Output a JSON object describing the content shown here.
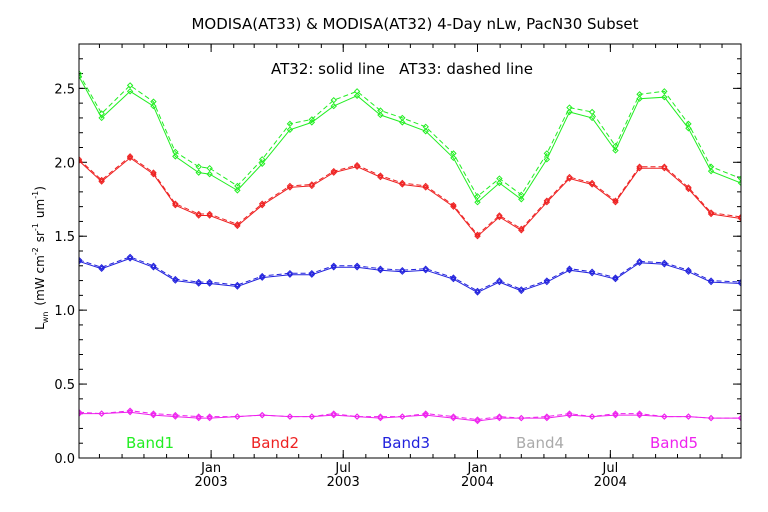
{
  "chart_data": {
    "type": "line",
    "title": "MODISA(AT33) & MODISA(AT32) 4-Day nLw, PacN30 Subset",
    "annotation": "AT32: solid line   AT33: dashed line",
    "ylabel": "L_wn (mW cm^-2 sr^-1 um^-1)",
    "ylabel_parts": {
      "L": "L",
      "wn": "wn",
      "mid": "(mW cm",
      "exp1": "-2",
      "sr": "sr",
      "exp2": "-1",
      "um": "um",
      "exp3": "-1",
      "close": ")"
    },
    "xlim": [
      "2002-07-04",
      "2004-12-27"
    ],
    "ylim": [
      0,
      2.8
    ],
    "yticks": [
      {
        "value": 0.0,
        "label": "0.0"
      },
      {
        "value": 0.5,
        "label": "0.5"
      },
      {
        "value": 1.0,
        "label": "1.0"
      },
      {
        "value": 1.5,
        "label": "1.5"
      },
      {
        "value": 2.0,
        "label": "2.0"
      },
      {
        "value": 2.5,
        "label": "2.5"
      }
    ],
    "xticks": [
      {
        "date": "2003-01-01",
        "label1": "Jan",
        "label2": "2003"
      },
      {
        "date": "2003-07-01",
        "label1": "Jul",
        "label2": "2003"
      },
      {
        "date": "2004-01-01",
        "label1": "Jan",
        "label2": "2004"
      },
      {
        "date": "2004-07-01",
        "label1": "Jul",
        "label2": "2004"
      }
    ],
    "x": [
      "2002-07-04",
      "2002-08-04",
      "2002-09-12",
      "2002-10-14",
      "2002-11-13",
      "2002-12-15",
      "2002-12-30",
      "2003-02-06",
      "2003-03-12",
      "2003-04-19",
      "2003-05-19",
      "2003-06-18",
      "2003-07-20",
      "2003-08-21",
      "2003-09-20",
      "2003-10-22",
      "2003-11-29",
      "2004-01-01",
      "2004-01-31",
      "2004-03-01",
      "2004-04-05",
      "2004-05-06",
      "2004-06-06",
      "2004-07-08",
      "2004-08-10",
      "2004-09-13",
      "2004-10-16",
      "2004-11-16",
      "2004-12-27"
    ],
    "series": [
      {
        "name": "Band1",
        "color": "#22ee22",
        "line": "solid",
        "values": [
          2.58,
          2.3,
          2.48,
          2.38,
          2.04,
          1.93,
          1.92,
          1.81,
          1.99,
          2.22,
          2.27,
          2.38,
          2.45,
          2.32,
          2.27,
          2.21,
          2.03,
          1.73,
          1.86,
          1.75,
          2.02,
          2.34,
          2.3,
          2.08,
          2.43,
          2.44,
          2.23,
          1.94,
          1.86
        ]
      },
      {
        "name": "Band1 AT33",
        "color": "#22ee22",
        "line": "dashed",
        "values": [
          2.6,
          2.33,
          2.52,
          2.41,
          2.07,
          1.97,
          1.96,
          1.84,
          2.02,
          2.26,
          2.29,
          2.42,
          2.48,
          2.35,
          2.3,
          2.24,
          2.06,
          1.77,
          1.89,
          1.78,
          2.06,
          2.37,
          2.34,
          2.11,
          2.46,
          2.48,
          2.26,
          1.97,
          1.89
        ]
      },
      {
        "name": "Band2",
        "color": "#ee2222",
        "line": "solid",
        "values": [
          2.01,
          1.87,
          2.03,
          1.92,
          1.71,
          1.64,
          1.64,
          1.57,
          1.71,
          1.83,
          1.84,
          1.93,
          1.97,
          1.9,
          1.85,
          1.83,
          1.7,
          1.5,
          1.63,
          1.54,
          1.73,
          1.89,
          1.85,
          1.73,
          1.96,
          1.96,
          1.82,
          1.65,
          1.62
        ]
      },
      {
        "name": "Band2 AT33",
        "color": "#ee2222",
        "line": "dashed",
        "values": [
          2.02,
          1.88,
          2.04,
          1.93,
          1.72,
          1.65,
          1.65,
          1.58,
          1.72,
          1.84,
          1.85,
          1.94,
          1.98,
          1.91,
          1.86,
          1.84,
          1.71,
          1.51,
          1.64,
          1.55,
          1.74,
          1.9,
          1.86,
          1.74,
          1.97,
          1.97,
          1.83,
          1.66,
          1.63
        ]
      },
      {
        "name": "Band3",
        "color": "#2222dd",
        "line": "solid",
        "values": [
          1.33,
          1.28,
          1.35,
          1.29,
          1.2,
          1.18,
          1.18,
          1.16,
          1.22,
          1.24,
          1.24,
          1.29,
          1.29,
          1.27,
          1.26,
          1.27,
          1.21,
          1.12,
          1.19,
          1.13,
          1.19,
          1.27,
          1.25,
          1.21,
          1.32,
          1.31,
          1.26,
          1.19,
          1.18
        ]
      },
      {
        "name": "Band3 AT33",
        "color": "#2222dd",
        "line": "dashed",
        "values": [
          1.34,
          1.29,
          1.36,
          1.3,
          1.21,
          1.19,
          1.19,
          1.17,
          1.23,
          1.25,
          1.25,
          1.3,
          1.3,
          1.28,
          1.27,
          1.28,
          1.22,
          1.13,
          1.2,
          1.14,
          1.2,
          1.28,
          1.26,
          1.22,
          1.33,
          1.32,
          1.27,
          1.2,
          1.19
        ]
      },
      {
        "name": "Band5",
        "color": "#ee22ee",
        "line": "solid",
        "values": [
          0.3,
          0.3,
          0.31,
          0.29,
          0.28,
          0.27,
          0.27,
          0.28,
          0.29,
          0.28,
          0.28,
          0.29,
          0.28,
          0.27,
          0.28,
          0.29,
          0.27,
          0.25,
          0.27,
          0.27,
          0.27,
          0.29,
          0.28,
          0.29,
          0.29,
          0.28,
          0.28,
          0.27,
          0.27
        ]
      },
      {
        "name": "Band5 AT33",
        "color": "#ee22ee",
        "line": "dashed",
        "values": [
          0.31,
          0.3,
          0.32,
          0.3,
          0.29,
          0.28,
          0.28,
          0.28,
          0.29,
          0.28,
          0.28,
          0.3,
          0.28,
          0.28,
          0.28,
          0.3,
          0.28,
          0.26,
          0.28,
          0.27,
          0.28,
          0.3,
          0.28,
          0.3,
          0.3,
          0.28,
          0.28,
          0.27,
          0.27
        ]
      }
    ],
    "legend": [
      {
        "label": "Band1",
        "color": "#22ee22"
      },
      {
        "label": "Band2",
        "color": "#ee2222"
      },
      {
        "label": "Band3",
        "color": "#2222dd"
      },
      {
        "label": "Band4",
        "color": "#aaaaaa"
      },
      {
        "label": "Band5",
        "color": "#ee22ee"
      }
    ],
    "grid": false,
    "legend_position": "bottom"
  }
}
